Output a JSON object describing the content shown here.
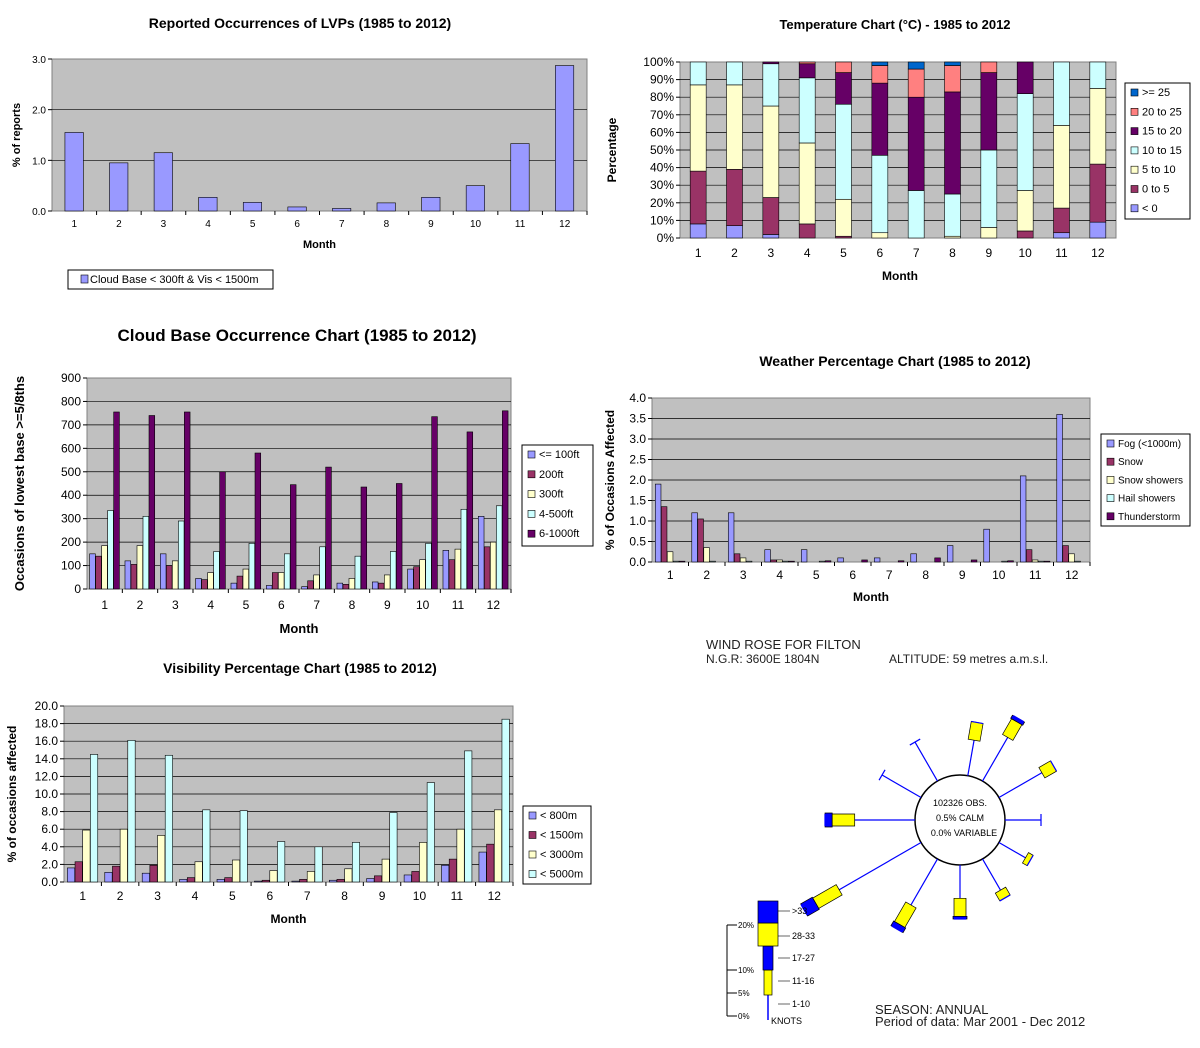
{
  "colors": {
    "plot_bg": "#c0c0c0",
    "blue_purple": "#9999ff",
    "maroon": "#993366",
    "cream": "#ffffcc",
    "light_cyan": "#ccffff",
    "deep_purple": "#660066",
    "salmon": "#ff8080",
    "steel_blue": "#0066cc",
    "rose_blue": "#0000ff",
    "rose_yellow": "#ffff00"
  },
  "chart_data": [
    {
      "id": "lvp",
      "type": "bar",
      "title": "Reported Occurrences of LVPs  (1985 to 2012)",
      "xlabel": "Month",
      "ylabel": "% of reports",
      "categories": [
        "1",
        "2",
        "3",
        "4",
        "5",
        "6",
        "7",
        "8",
        "9",
        "10",
        "11",
        "12"
      ],
      "ylim": [
        0,
        3.0
      ],
      "yticks": [
        "0.0",
        "1.0",
        "2.0",
        "3.0"
      ],
      "grid": true,
      "legend_position": "bottom-left",
      "series": [
        {
          "name": "Cloud Base < 300ft & Vis < 1500m",
          "values": [
            1.55,
            0.95,
            1.15,
            0.27,
            0.17,
            0.08,
            0.05,
            0.16,
            0.27,
            0.5,
            1.33,
            2.87
          ]
        }
      ]
    },
    {
      "id": "temperature",
      "type": "bar",
      "stacked": true,
      "title": "Temperature Chart (°C) - 1985 to 2012",
      "xlabel": "Month",
      "ylabel": "Percentage",
      "categories": [
        "1",
        "2",
        "3",
        "4",
        "5",
        "6",
        "7",
        "8",
        "9",
        "10",
        "11",
        "12"
      ],
      "ylim": [
        0,
        100
      ],
      "yticks": [
        "0%",
        "10%",
        "20%",
        "30%",
        "40%",
        "50%",
        "60%",
        "70%",
        "80%",
        "90%",
        "100%"
      ],
      "grid": true,
      "legend_position": "right",
      "series": [
        {
          "name": "< 0",
          "values": [
            8,
            7,
            2,
            0,
            0,
            0,
            0,
            0,
            0,
            0,
            3,
            9
          ]
        },
        {
          "name": "0 to 5",
          "values": [
            30,
            32,
            21,
            8,
            1,
            0,
            0,
            0,
            0,
            4,
            14,
            33
          ]
        },
        {
          "name": "5 to 10",
          "values": [
            49,
            48,
            52,
            46,
            21,
            3,
            0,
            1,
            6,
            23,
            47,
            43
          ]
        },
        {
          "name": "10 to 15",
          "values": [
            13,
            13,
            24,
            37,
            54,
            44,
            27,
            24,
            44,
            55,
            36,
            15
          ]
        },
        {
          "name": "15 to 20",
          "values": [
            0,
            0,
            1,
            8,
            18,
            41,
            53,
            58,
            44,
            18,
            0,
            0
          ]
        },
        {
          "name": "20 to 25",
          "values": [
            0,
            0,
            0,
            1,
            6,
            10,
            16,
            15,
            6,
            0,
            0,
            0
          ]
        },
        {
          "name": ">= 25",
          "values": [
            0,
            0,
            0,
            0,
            0,
            2,
            4,
            2,
            0,
            0,
            0,
            0
          ]
        }
      ]
    },
    {
      "id": "cloudbase",
      "type": "bar",
      "title": "Cloud Base Occurrence Chart (1985 to 2012)",
      "xlabel": "Month",
      "ylabel": "Occasions of lowest base >=5/8ths",
      "categories": [
        "1",
        "2",
        "3",
        "4",
        "5",
        "6",
        "7",
        "8",
        "9",
        "10",
        "11",
        "12"
      ],
      "ylim": [
        0,
        900
      ],
      "yticks": [
        "0",
        "100",
        "200",
        "300",
        "400",
        "500",
        "600",
        "700",
        "800",
        "900"
      ],
      "grid": true,
      "legend_position": "right",
      "series": [
        {
          "name": "<= 100ft",
          "values": [
            150,
            120,
            150,
            45,
            25,
            15,
            10,
            25,
            30,
            85,
            165,
            310
          ]
        },
        {
          "name": "200ft",
          "values": [
            140,
            105,
            100,
            40,
            55,
            70,
            35,
            20,
            25,
            95,
            125,
            180
          ]
        },
        {
          "name": "300ft",
          "values": [
            185,
            185,
            120,
            70,
            85,
            70,
            60,
            45,
            60,
            125,
            170,
            200
          ]
        },
        {
          "name": "4-500ft",
          "values": [
            335,
            310,
            290,
            160,
            195,
            150,
            180,
            140,
            160,
            195,
            340,
            355
          ]
        },
        {
          "name": "6-1000ft",
          "values": [
            755,
            740,
            755,
            500,
            580,
            445,
            520,
            435,
            450,
            735,
            670,
            760
          ]
        }
      ]
    },
    {
      "id": "weather",
      "type": "bar",
      "title": "Weather Percentage Chart (1985 to 2012)",
      "xlabel": "Month",
      "ylabel": "% of Occasions Affected",
      "categories": [
        "1",
        "2",
        "3",
        "4",
        "5",
        "6",
        "7",
        "8",
        "9",
        "10",
        "11",
        "12"
      ],
      "ylim": [
        0,
        4.0
      ],
      "yticks": [
        "0.0",
        "0.5",
        "1.0",
        "1.5",
        "2.0",
        "2.5",
        "3.0",
        "3.5",
        "4.0"
      ],
      "grid": true,
      "legend_position": "right",
      "series": [
        {
          "name": "Fog (<1000m)",
          "values": [
            1.9,
            1.2,
            1.2,
            0.3,
            0.3,
            0.1,
            0.1,
            0.2,
            0.4,
            0.8,
            2.1,
            3.6
          ]
        },
        {
          "name": "Snow",
          "values": [
            1.35,
            1.05,
            0.2,
            0.05,
            0.0,
            0.0,
            0.0,
            0.0,
            0.0,
            0.0,
            0.3,
            0.4
          ]
        },
        {
          "name": "Snow showers",
          "values": [
            0.25,
            0.35,
            0.1,
            0.05,
            0.0,
            0.0,
            0.0,
            0.0,
            0.0,
            0.0,
            0.05,
            0.2
          ]
        },
        {
          "name": "Hail showers",
          "values": [
            0.02,
            0.02,
            0.02,
            0.02,
            0.02,
            0.0,
            0.0,
            0.0,
            0.0,
            0.02,
            0.02,
            0.02
          ]
        },
        {
          "name": "Thunderstorm",
          "values": [
            0.02,
            0.0,
            0.0,
            0.02,
            0.03,
            0.05,
            0.03,
            0.1,
            0.05,
            0.03,
            0.02,
            0.0
          ]
        }
      ]
    },
    {
      "id": "visibility",
      "type": "bar",
      "title": "Visibility Percentage Chart (1985 to 2012)",
      "xlabel": "Month",
      "ylabel": "% of occasions affected",
      "categories": [
        "1",
        "2",
        "3",
        "4",
        "5",
        "6",
        "7",
        "8",
        "9",
        "10",
        "11",
        "12"
      ],
      "ylim": [
        0,
        20.0
      ],
      "yticks": [
        "0.0",
        "2.0",
        "4.0",
        "6.0",
        "8.0",
        "10.0",
        "12.0",
        "14.0",
        "16.0",
        "18.0",
        "20.0"
      ],
      "grid": true,
      "legend_position": "right",
      "series": [
        {
          "name": "< 800m",
          "values": [
            1.6,
            1.1,
            1.0,
            0.3,
            0.3,
            0.1,
            0.1,
            0.2,
            0.4,
            0.8,
            1.9,
            3.4
          ]
        },
        {
          "name": "< 1500m",
          "values": [
            2.3,
            1.8,
            1.9,
            0.5,
            0.5,
            0.2,
            0.3,
            0.3,
            0.7,
            1.2,
            2.6,
            4.3
          ]
        },
        {
          "name": "< 3000m",
          "values": [
            5.9,
            6.0,
            5.3,
            2.3,
            2.5,
            1.3,
            1.2,
            1.5,
            2.6,
            4.5,
            6.0,
            8.2
          ]
        },
        {
          "name": "< 5000m",
          "values": [
            14.5,
            16.1,
            14.4,
            8.2,
            8.1,
            4.6,
            4.0,
            4.5,
            7.9,
            11.3,
            14.9,
            18.5
          ]
        }
      ]
    }
  ],
  "windrose": {
    "title": "WIND ROSE FOR FILTON",
    "ngr": "N.G.R: 3600E 1804N",
    "altitude": "ALTITUDE:   59 metres a.m.s.l.",
    "obs": "102326 OBS.",
    "calm": "0.5% CALM",
    "variable": "0.0% VARIABLE",
    "season": "SEASON: ANNUAL",
    "period": "Period of data: Mar 2001 - Dec 2012",
    "scale_labels": [
      "20%",
      "10%",
      "5%",
      "0%"
    ],
    "speed_labels": [
      ">33",
      "28-33",
      "17-27",
      "11-16",
      "1-10"
    ],
    "units": "KNOTS",
    "directions_deg": [
      10,
      30,
      60,
      90,
      120,
      150,
      180,
      210,
      240,
      270,
      300,
      330
    ],
    "direction_stats": [
      {
        "dir": 10,
        "total": 6,
        "s11": 2,
        "s17": 0,
        "s28": 0
      },
      {
        "dir": 30,
        "total": 8,
        "s11": 2,
        "s17": 0.4,
        "s28": 0
      },
      {
        "dir": 60,
        "total": 7,
        "s11": 1.5,
        "s17": 0,
        "s28": 0
      },
      {
        "dir": 90,
        "total": 4,
        "s11": 0,
        "s17": 0,
        "s28": 0
      },
      {
        "dir": 120,
        "total": 4,
        "s11": 0.6,
        "s17": 0,
        "s28": 0
      },
      {
        "dir": 150,
        "total": 5,
        "s11": 1,
        "s17": 0,
        "s28": 0
      },
      {
        "dir": 180,
        "total": 6,
        "s11": 2,
        "s17": 0.3,
        "s28": 0
      },
      {
        "dir": 210,
        "total": 9,
        "s11": 2.5,
        "s17": 0.6,
        "s28": 0
      },
      {
        "dir": 240,
        "total": 15,
        "s11": 3,
        "s17": 1.5,
        "s28": 0
      },
      {
        "dir": 270,
        "total": 10,
        "s11": 2.5,
        "s17": 0.8,
        "s28": 0
      },
      {
        "dir": 300,
        "total": 5,
        "s11": 0,
        "s17": 0,
        "s28": 0
      },
      {
        "dir": 330,
        "total": 5,
        "s11": 0,
        "s17": 0,
        "s28": 0
      }
    ]
  }
}
